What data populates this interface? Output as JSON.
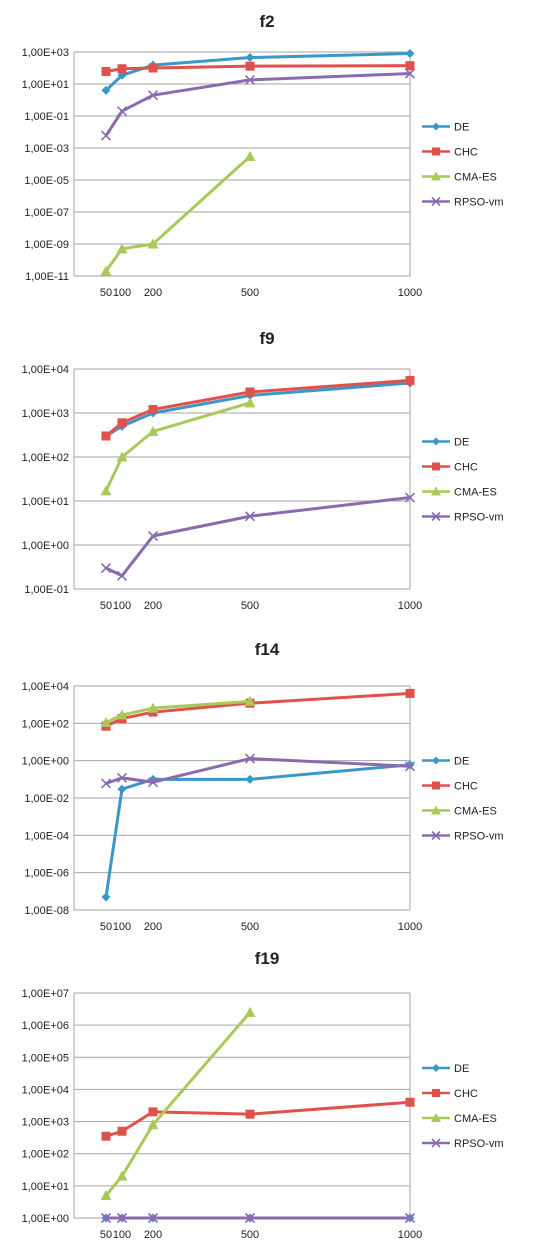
{
  "colors": {
    "DE": "#3a97c9",
    "CHC": "#e0514c",
    "CMA-ES": "#a9c95a",
    "RPSO-vm": "#8b6bb0"
  },
  "chart_data": [
    {
      "type": "line",
      "title": "f2",
      "scale": "log",
      "x": [
        50,
        100,
        200,
        500,
        1000
      ],
      "x_ticks": [
        "50",
        "100",
        "200",
        "500",
        "1000"
      ],
      "y_ticks": [
        "1,00E-11",
        "1,00E-09",
        "1,00E-07",
        "1,00E-05",
        "1,00E-03",
        "1,00E-01",
        "1,00E+01",
        "1,00E+03"
      ],
      "ylim": [
        1e-11,
        1000
      ],
      "grid": true,
      "legend": "right",
      "series": [
        {
          "name": "DE",
          "marker": "diamond",
          "values": [
            4,
            35,
            150,
            450,
            800
          ]
        },
        {
          "name": "CHC",
          "marker": "square",
          "values": [
            60,
            90,
            100,
            130,
            140
          ]
        },
        {
          "name": "CMA-ES",
          "marker": "triangle",
          "values": [
            2e-11,
            5e-10,
            1e-09,
            0.0003,
            null
          ]
        },
        {
          "name": "RPSO-vm",
          "marker": "cross",
          "values": [
            0.006,
            0.2,
            2,
            18,
            45
          ]
        }
      ]
    },
    {
      "type": "line",
      "title": "f9",
      "scale": "log",
      "x": [
        50,
        100,
        200,
        500,
        1000
      ],
      "x_ticks": [
        "50",
        "100",
        "200",
        "500",
        "1000"
      ],
      "y_ticks": [
        "1,00E-01",
        "1,00E+00",
        "1,00E+01",
        "1,00E+02",
        "1,00E+03",
        "1,00E+04"
      ],
      "ylim": [
        0.1,
        10000
      ],
      "grid": true,
      "legend": "right",
      "series": [
        {
          "name": "DE",
          "marker": "diamond",
          "values": [
            300,
            500,
            1000,
            2500,
            4800
          ]
        },
        {
          "name": "CHC",
          "marker": "square",
          "values": [
            300,
            600,
            1200,
            3000,
            5500
          ]
        },
        {
          "name": "CMA-ES",
          "marker": "triangle",
          "values": [
            17,
            100,
            380,
            1700,
            null
          ]
        },
        {
          "name": "RPSO-vm",
          "marker": "cross",
          "values": [
            0.3,
            0.2,
            1.6,
            4.5,
            12
          ]
        }
      ]
    },
    {
      "type": "line",
      "title": "f14",
      "scale": "log",
      "x": [
        50,
        100,
        200,
        500,
        1000
      ],
      "x_ticks": [
        "50",
        "100",
        "200",
        "500",
        "1000"
      ],
      "y_ticks": [
        "1,00E-08",
        "1,00E-06",
        "1,00E-04",
        "1,00E-02",
        "1,00E+00",
        "1,00E+02",
        "1,00E+04"
      ],
      "ylim": [
        1e-08,
        10000
      ],
      "grid": true,
      "legend": "right",
      "series": [
        {
          "name": "DE",
          "marker": "diamond",
          "values": [
            5e-08,
            0.03,
            0.1,
            0.1,
            0.6
          ]
        },
        {
          "name": "CHC",
          "marker": "square",
          "values": [
            70,
            180,
            400,
            1200,
            4000
          ]
        },
        {
          "name": "CMA-ES",
          "marker": "triangle",
          "values": [
            110,
            280,
            650,
            1500,
            null
          ]
        },
        {
          "name": "RPSO-vm",
          "marker": "cross",
          "values": [
            0.06,
            0.12,
            0.07,
            1.3,
            0.5
          ]
        }
      ]
    },
    {
      "type": "line",
      "title": "f19",
      "scale": "log",
      "x": [
        50,
        100,
        200,
        500,
        1000
      ],
      "x_ticks": [
        "50",
        "100",
        "200",
        "500",
        "1000"
      ],
      "y_ticks": [
        "1,00E+00",
        "1,00E+01",
        "1,00E+02",
        "1,00E+03",
        "1,00E+04",
        "1,00E+05",
        "1,00E+06",
        "1,00E+07"
      ],
      "ylim": [
        1,
        10000000
      ],
      "grid": true,
      "legend": "right",
      "series": [
        {
          "name": "DE",
          "marker": "diamond",
          "values": [
            1,
            1,
            1,
            1,
            1
          ]
        },
        {
          "name": "CHC",
          "marker": "square",
          "values": [
            350,
            500,
            2000,
            1700,
            4000
          ]
        },
        {
          "name": "CMA-ES",
          "marker": "triangle",
          "values": [
            5,
            20,
            800,
            2500000,
            null
          ]
        },
        {
          "name": "RPSO-vm",
          "marker": "cross",
          "values": [
            1,
            1,
            1,
            1,
            1
          ]
        }
      ]
    }
  ]
}
